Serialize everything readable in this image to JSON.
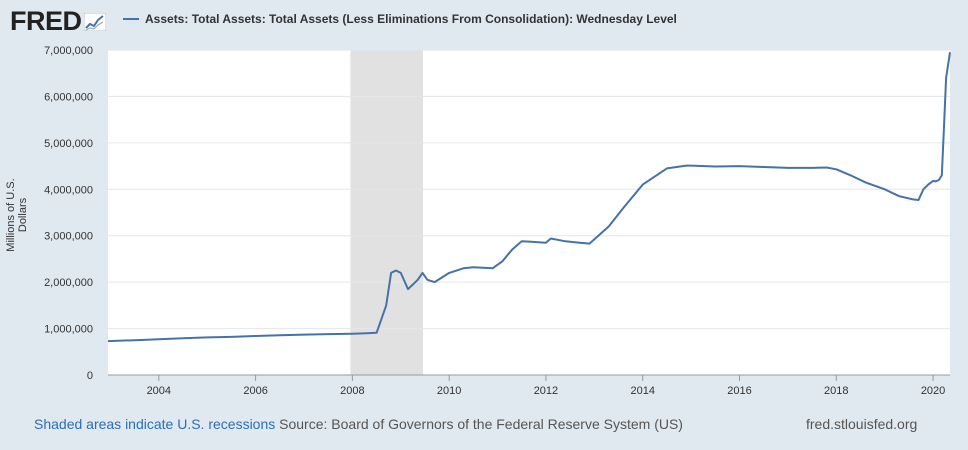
{
  "header": {
    "logo_text": "FRED",
    "legend_label": "Assets: Total Assets: Total Assets (Less Eliminations From Consolidation): Wednesday Level"
  },
  "colors": {
    "series": "#4572a7",
    "recession": "#e1e1e1",
    "background": "#e1e9f0",
    "plot": "#ffffff",
    "link": "#2a6ebb"
  },
  "footer": {
    "recession_note": "Shaded areas indicate U.S. recessions",
    "source": "Source: Board of Governors of the Federal Reserve System (US)",
    "site": "fred.stlouisfed.org"
  },
  "chart_data": {
    "type": "line",
    "title": "",
    "xlabel": "",
    "ylabel": "Millions of U.S. Dollars",
    "xlim": [
      2002.95,
      2020.35
    ],
    "ylim": [
      0,
      7000000
    ],
    "yticks": [
      0,
      1000000,
      2000000,
      3000000,
      4000000,
      5000000,
      6000000,
      7000000
    ],
    "ytick_labels": [
      "0",
      "1,000,000",
      "2,000,000",
      "3,000,000",
      "4,000,000",
      "5,000,000",
      "6,000,000",
      "7,000,000"
    ],
    "xticks": [
      2004,
      2006,
      2008,
      2010,
      2012,
      2014,
      2016,
      2018,
      2020
    ],
    "xtick_labels": [
      "2004",
      "2006",
      "2008",
      "2010",
      "2012",
      "2014",
      "2016",
      "2018",
      "2020"
    ],
    "grid": "horizontal",
    "legend": "top",
    "recessions": [
      [
        2007.96,
        2009.46
      ]
    ],
    "series": [
      {
        "name": "Assets: Total Assets: Total Assets (Less Eliminations From Consolidation): Wednesday Level",
        "x": [
          2002.95,
          2003.5,
          2004.0,
          2004.5,
          2005.0,
          2005.5,
          2006.0,
          2006.5,
          2007.0,
          2007.5,
          2008.0,
          2008.3,
          2008.5,
          2008.7,
          2008.8,
          2008.9,
          2009.0,
          2009.15,
          2009.25,
          2009.35,
          2009.45,
          2009.55,
          2009.7,
          2010.0,
          2010.3,
          2010.5,
          2010.9,
          2011.1,
          2011.3,
          2011.5,
          2011.7,
          2012.0,
          2012.1,
          2012.4,
          2012.7,
          2012.9,
          2013.3,
          2013.6,
          2014.0,
          2014.5,
          2014.9,
          2015.0,
          2015.5,
          2016.0,
          2016.5,
          2017.0,
          2017.5,
          2017.8,
          2018.0,
          2018.3,
          2018.6,
          2019.0,
          2019.3,
          2019.6,
          2019.7,
          2019.8,
          2019.9,
          2020.0,
          2020.05,
          2020.12,
          2020.18,
          2020.22,
          2020.27,
          2020.35
        ],
        "values": [
          730000,
          750000,
          770000,
          790000,
          810000,
          820000,
          840000,
          855000,
          870000,
          880000,
          890000,
          900000,
          910000,
          1500000,
          2200000,
          2250000,
          2200000,
          1850000,
          1950000,
          2050000,
          2200000,
          2050000,
          2000000,
          2200000,
          2300000,
          2320000,
          2300000,
          2450000,
          2700000,
          2880000,
          2870000,
          2850000,
          2940000,
          2880000,
          2850000,
          2830000,
          3200000,
          3600000,
          4100000,
          4450000,
          4510000,
          4510000,
          4490000,
          4500000,
          4480000,
          4460000,
          4460000,
          4470000,
          4430000,
          4300000,
          4150000,
          4000000,
          3850000,
          3780000,
          3770000,
          4000000,
          4100000,
          4180000,
          4170000,
          4200000,
          4300000,
          5200000,
          6400000,
          6950000
        ]
      }
    ]
  }
}
